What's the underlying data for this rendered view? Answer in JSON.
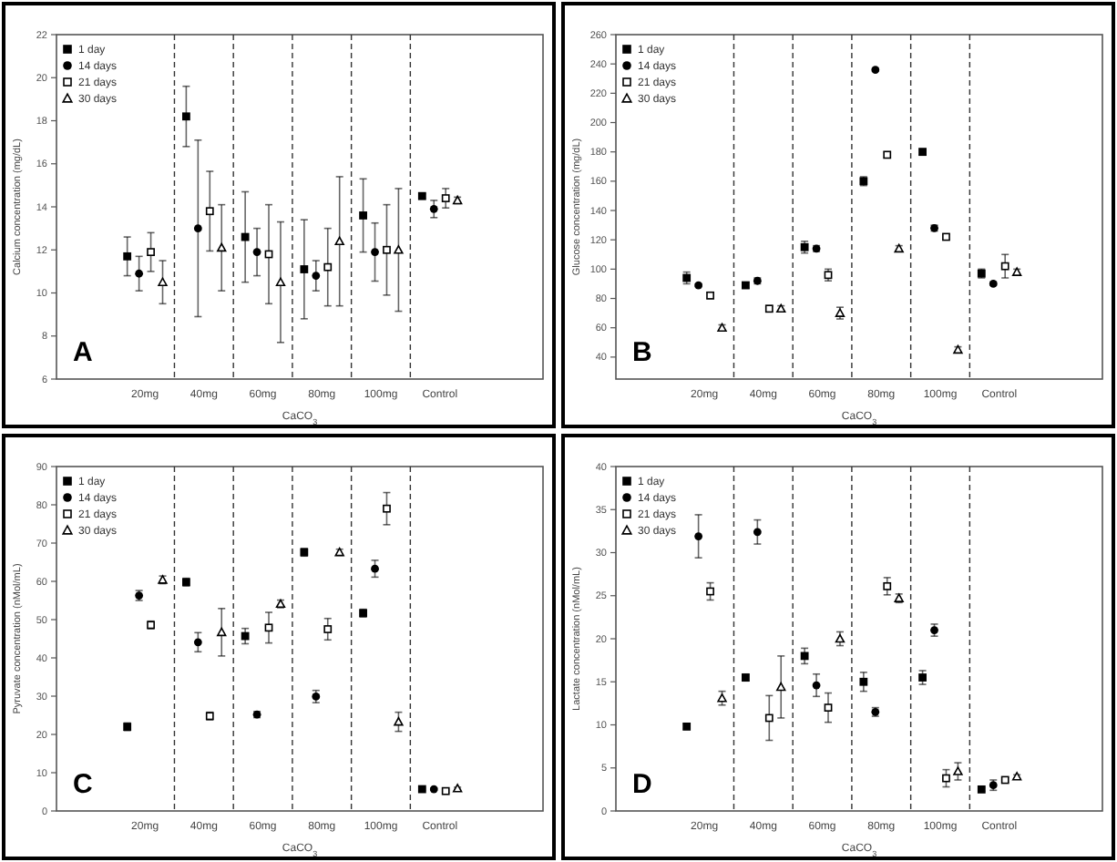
{
  "chart_data": [
    {
      "type": "scatter",
      "ylabel": "Calcium concentration (mg/dL)",
      "xlabel": "CaCO$_{3}$",
      "annotations": [
        "A"
      ],
      "categories": [
        "20mg",
        "40mg",
        "60mg",
        "80mg",
        "100mg",
        "Control"
      ],
      "ylim": [
        6,
        22
      ],
      "yticks": [
        6,
        8,
        10,
        12,
        14,
        16,
        18,
        20,
        22
      ],
      "legend": "top left",
      "grid": false,
      "series": [
        {
          "name": "1 day",
          "color": "#000000",
          "marker": "square",
          "values": [
            11.7,
            18.2,
            12.6,
            11.1,
            13.6,
            14.5
          ],
          "errors": [
            0.9,
            1.4,
            2.1,
            2.3,
            1.7,
            0.1
          ]
        },
        {
          "name": "14 days",
          "color": "#000000",
          "marker": "circle",
          "values": [
            10.9,
            13.0,
            11.9,
            10.8,
            11.9,
            13.9
          ],
          "errors": [
            0.8,
            4.1,
            1.1,
            0.7,
            1.35,
            0.4
          ]
        },
        {
          "name": "21 days",
          "color": "#000000",
          "marker": "square",
          "values": [
            11.9,
            13.8,
            11.8,
            11.2,
            12.0,
            14.4
          ],
          "errors": [
            0.9,
            1.85,
            2.3,
            1.8,
            2.1,
            0.45
          ]
        },
        {
          "name": "30 days",
          "color": "#000000",
          "marker": "triangle",
          "values": [
            10.5,
            12.1,
            10.5,
            12.4,
            12.0,
            14.3
          ],
          "errors": [
            1.0,
            2.0,
            2.8,
            3.0,
            2.85,
            0.15
          ]
        }
      ]
    },
    {
      "type": "scatter",
      "ylabel": "Glucose concentration (mg/dL)",
      "xlabel": "CaCO$_{3}$",
      "annotations": [
        "B"
      ],
      "categories": [
        "20mg",
        "40mg",
        "60mg",
        "80mg",
        "100mg",
        "Control"
      ],
      "ylim": [
        25,
        260
      ],
      "yticks": [
        40,
        60,
        80,
        100,
        120,
        140,
        160,
        180,
        200,
        220,
        240,
        260
      ],
      "legend": "top left",
      "grid": false,
      "series": [
        {
          "name": "1 day",
          "color": "#000000",
          "marker": "square",
          "values": [
            94,
            89,
            115,
            160,
            180,
            97
          ],
          "errors": [
            4,
            2,
            4,
            3,
            2,
            3
          ]
        },
        {
          "name": "14 days",
          "color": "#000000",
          "marker": "circle",
          "values": [
            89,
            92,
            114,
            236,
            128,
            90
          ],
          "errors": [
            1,
            2,
            2,
            1,
            2,
            1
          ]
        },
        {
          "name": "21 days",
          "color": "#000000",
          "marker": "square",
          "values": [
            82,
            73,
            96,
            178,
            122,
            102
          ],
          "errors": [
            2,
            2,
            4,
            2,
            2,
            8
          ]
        },
        {
          "name": "30 days",
          "color": "#000000",
          "marker": "triangle",
          "values": [
            60,
            73,
            70,
            114,
            45,
            98
          ],
          "errors": [
            2,
            2,
            4,
            2,
            2,
            2
          ]
        }
      ]
    },
    {
      "type": "scatter",
      "ylabel": "Pyruvate concentration (nMol/mL)",
      "xlabel": "CaCO$_{3}$",
      "annotations": [
        "C"
      ],
      "categories": [
        "20mg",
        "40mg",
        "60mg",
        "80mg",
        "100mg",
        "Control"
      ],
      "ylim": [
        0,
        90
      ],
      "yticks": [
        0,
        10,
        20,
        30,
        40,
        50,
        60,
        70,
        80,
        90
      ],
      "legend": "top left",
      "grid": false,
      "series": [
        {
          "name": "1 day",
          "color": "#000000",
          "marker": "square",
          "values": [
            22,
            59.8,
            45.7,
            67.6,
            51.7,
            5.7
          ],
          "errors": [
            1,
            1,
            2,
            1,
            1,
            0.3
          ]
        },
        {
          "name": "14 days",
          "color": "#000000",
          "marker": "circle",
          "values": [
            56.3,
            44.1,
            25.2,
            29.9,
            63.3,
            5.7
          ],
          "errors": [
            1.3,
            2.5,
            0.8,
            1.6,
            2.2,
            0.3
          ]
        },
        {
          "name": "21 days",
          "color": "#000000",
          "marker": "square",
          "values": [
            48.6,
            24.8,
            47.9,
            47.5,
            79,
            5.2
          ],
          "errors": [
            1,
            1,
            4,
            2.8,
            4.2,
            0.3
          ]
        },
        {
          "name": "30 days",
          "color": "#000000",
          "marker": "triangle",
          "values": [
            60.4,
            46.7,
            54.1,
            67.6,
            23.3,
            5.9
          ],
          "errors": [
            1,
            6.2,
            1,
            0.8,
            2.5,
            0.3
          ]
        }
      ]
    },
    {
      "type": "scatter",
      "ylabel": "Lactate concentration (nMol/mL)",
      "xlabel": "CaCO$_{3}$",
      "annotations": [
        "D"
      ],
      "categories": [
        "20mg",
        "40mg",
        "60mg",
        "80mg",
        "100mg",
        "Control"
      ],
      "ylim": [
        0,
        40
      ],
      "yticks": [
        0,
        5,
        10,
        15,
        20,
        25,
        30,
        35,
        40
      ],
      "legend": "top left",
      "grid": false,
      "series": [
        {
          "name": "1 day",
          "color": "#000000",
          "marker": "square",
          "values": [
            9.8,
            15.5,
            18,
            15,
            15.5,
            2.5
          ],
          "errors": [
            0.3,
            0.4,
            0.9,
            1.1,
            0.8,
            0.2
          ]
        },
        {
          "name": "14 days",
          "color": "#000000",
          "marker": "circle",
          "values": [
            31.9,
            32.4,
            14.6,
            11.5,
            21,
            3.0
          ],
          "errors": [
            2.5,
            1.4,
            1.3,
            0.5,
            0.7,
            0.6
          ]
        },
        {
          "name": "21 days",
          "color": "#000000",
          "marker": "square",
          "values": [
            25.5,
            10.8,
            12,
            26.1,
            3.8,
            3.6
          ],
          "errors": [
            1,
            2.6,
            1.7,
            1,
            1,
            0.3
          ]
        },
        {
          "name": "30 days",
          "color": "#000000",
          "marker": "triangle",
          "values": [
            13.1,
            14.4,
            20,
            24.7,
            4.6,
            4
          ],
          "errors": [
            0.8,
            3.6,
            0.8,
            0.5,
            1,
            0.2
          ]
        }
      ]
    }
  ]
}
